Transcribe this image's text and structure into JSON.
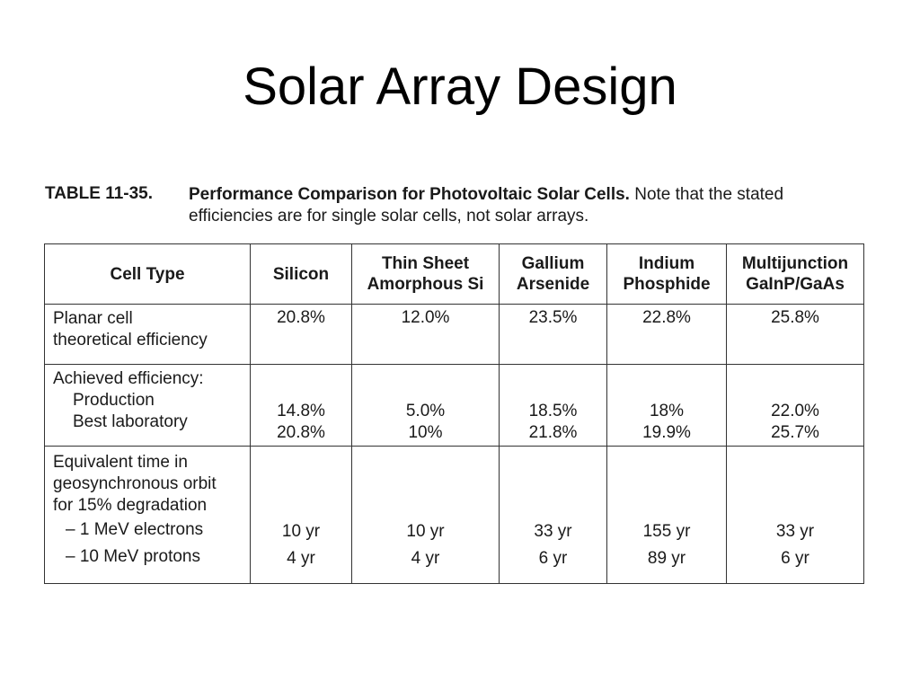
{
  "slide": {
    "title": "Solar Array Design"
  },
  "table_caption": {
    "label": "TABLE 11-35.",
    "title": "Performance Comparison for Photovoltaic Solar Cells.",
    "note_line1": " Note that the stated",
    "note_line2": "efficiencies are for single solar cells, not solar arrays."
  },
  "table": {
    "headers": {
      "cell_type": "Cell Type",
      "silicon": "Silicon",
      "thin_sheet_1": "Thin Sheet",
      "thin_sheet_2": "Amorphous Si",
      "gallium_1": "Gallium",
      "gallium_2": "Arsenide",
      "indium_1": "Indium",
      "indium_2": "Phosphide",
      "multi_1": "Multijunction",
      "multi_2": "GaInP/GaAs"
    },
    "row_planar": {
      "label_1": "Planar cell",
      "label_2": "theoretical efficiency",
      "silicon": "20.8%",
      "thin_sheet": "12.0%",
      "gallium": "23.5%",
      "indium": "22.8%",
      "multi": "25.8%"
    },
    "row_achieved": {
      "label_1": "Achieved efficiency:",
      "label_production": "Production",
      "label_best": "Best laboratory",
      "silicon_production": "14.8%",
      "silicon_best": "20.8%",
      "thin_sheet_production": "5.0%",
      "thin_sheet_best": "10%",
      "gallium_production": "18.5%",
      "gallium_best": "21.8%",
      "indium_production": "18%",
      "indium_best": "19.9%",
      "multi_production": "22.0%",
      "multi_best": "25.7%"
    },
    "row_degradation": {
      "label_1": "Equivalent time in",
      "label_2": "geosynchronous orbit",
      "label_3": "for 15% degradation",
      "label_electrons": "– 1 MeV electrons",
      "label_protons": "– 10 MeV protons",
      "silicon_electrons": "10 yr",
      "silicon_protons": "4 yr",
      "thin_sheet_electrons": "10 yr",
      "thin_sheet_protons": "4 yr",
      "gallium_electrons": "33 yr",
      "gallium_protons": "6 yr",
      "indium_electrons": "155 yr",
      "indium_protons": "89 yr",
      "multi_electrons": "33 yr",
      "multi_protons": "6 yr"
    }
  }
}
